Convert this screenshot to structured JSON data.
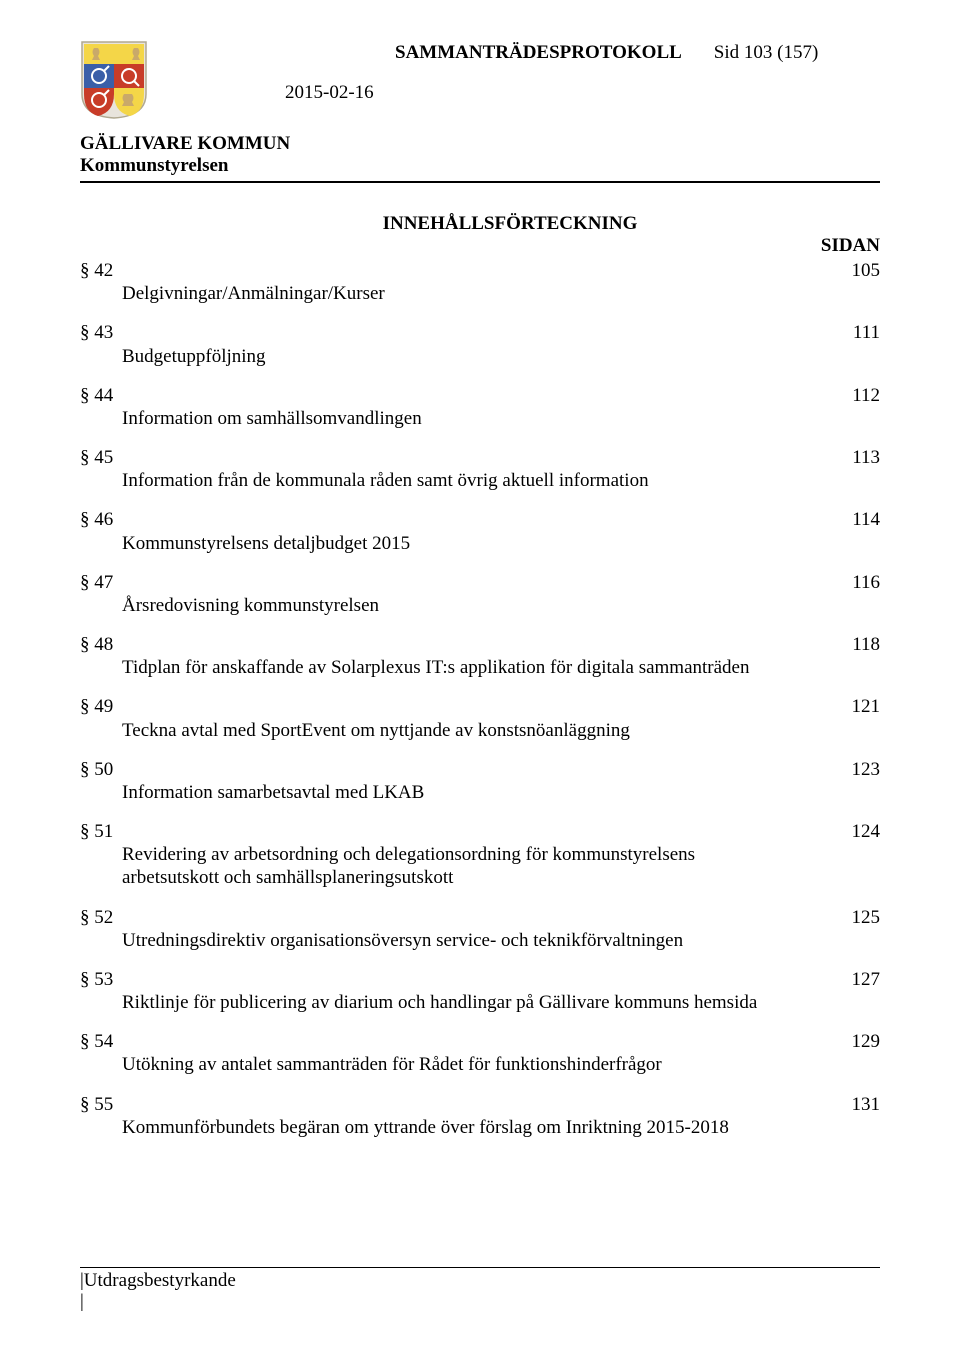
{
  "header": {
    "doc_title": "SAMMANTRÄDESPROTOKOLL",
    "page_ref": "Sid 103 (157)",
    "date": "2015-02-16",
    "org_name": "GÄLLIVARE KOMMUN",
    "org_sub": "Kommunstyrelsen"
  },
  "logo": {
    "bg_color": "#e8e4dc",
    "border_color": "#b0a890",
    "top_band": "#f4d648",
    "red": "#c83c28",
    "blue": "#3a5fa8",
    "yellow": "#f4d648",
    "animal": "#c9a96a"
  },
  "toc": {
    "heading": "INNEHÅLLSFÖRTECKNING",
    "sidan_label": "SIDAN",
    "entries": [
      {
        "section": "§ 42",
        "page": "105",
        "desc": "Delgivningar/Anmälningar/Kurser"
      },
      {
        "section": "§ 43",
        "page": "111",
        "desc": "Budgetuppföljning"
      },
      {
        "section": "§ 44",
        "page": "112",
        "desc": "Information om samhällsomvandlingen"
      },
      {
        "section": "§ 45",
        "page": "113",
        "desc": "Information från de kommunala råden samt övrig aktuell information"
      },
      {
        "section": "§ 46",
        "page": "114",
        "desc": "Kommunstyrelsens detaljbudget 2015"
      },
      {
        "section": "§ 47",
        "page": "116",
        "desc": "Årsredovisning kommunstyrelsen"
      },
      {
        "section": "§ 48",
        "page": "118",
        "desc": "Tidplan för anskaffande av Solarplexus IT:s applikation för digitala sammanträden"
      },
      {
        "section": "§ 49",
        "page": "121",
        "desc": "Teckna avtal med SportEvent om nyttjande av konstsnöanläggning"
      },
      {
        "section": "§ 50",
        "page": "123",
        "desc": "Information samarbetsavtal med LKAB"
      },
      {
        "section": "§ 51",
        "page": "124",
        "desc": "Revidering av arbetsordning och delegationsordning för kommunstyrelsens arbetsutskott och samhällsplaneringsutskott"
      },
      {
        "section": "§ 52",
        "page": "125",
        "desc": "Utredningsdirektiv organisationsöversyn service- och teknikförvaltningen"
      },
      {
        "section": "§ 53",
        "page": "127",
        "desc": "Riktlinje för publicering av diarium och handlingar på Gällivare kommuns hemsida"
      },
      {
        "section": "§ 54",
        "page": "129",
        "desc": "Utökning av antalet sammanträden för Rådet för funktionshinderfrågor"
      },
      {
        "section": "§ 55",
        "page": "131",
        "desc": "Kommunförbundets begäran om yttrande över förslag om Inriktning 2015-2018"
      }
    ]
  },
  "footer": {
    "label": "|Utdragsbestyrkande",
    "bar": "|"
  }
}
